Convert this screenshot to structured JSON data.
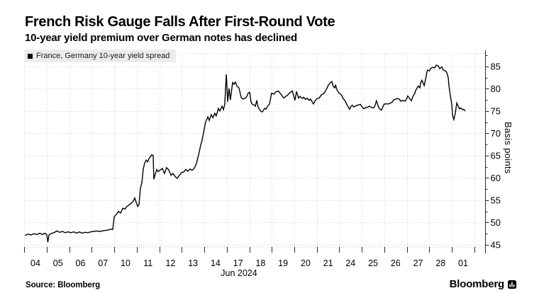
{
  "header": {
    "title": "French Risk Gauge Falls After First-Round Vote",
    "subtitle": "10-year yield premium over German notes has declined"
  },
  "legend": {
    "label": "France, Germany 10-year yield spread",
    "swatch_color": "#000000"
  },
  "footer": {
    "source": "Source: Bloomberg",
    "brand": "Bloomberg"
  },
  "chart_data": {
    "type": "line",
    "series_name": "France, Germany 10-year yield spread",
    "title": "French Risk Gauge Falls After First-Round Vote",
    "subtitle": "10-year yield premium over German notes has declined",
    "ylabel": "Basis points",
    "x_axis_label": "Jun 2024",
    "ylim": [
      44.5,
      88
    ],
    "y_ticks": [
      45,
      50,
      55,
      60,
      65,
      70,
      75,
      80,
      85
    ],
    "y_minor_tick_step": 2.5,
    "x_tick_labels": [
      "04",
      "05",
      "06",
      "07",
      "10",
      "11",
      "12",
      "13",
      "14",
      "17",
      "18",
      "19",
      "20",
      "21",
      "24",
      "25",
      "26",
      "27",
      "28",
      "01"
    ],
    "grid": true,
    "legend_position": "top-left",
    "line_color": "#000000",
    "grid_color": "#d2d2d2",
    "axis_color": "#2b2b2b",
    "points": [
      [
        -0.47,
        47.1
      ],
      [
        -0.32,
        47.4
      ],
      [
        -0.19,
        47.2
      ],
      [
        -0.06,
        47.5
      ],
      [
        0.06,
        47.3
      ],
      [
        0.19,
        47.6
      ],
      [
        0.32,
        47.3
      ],
      [
        0.41,
        47.6
      ],
      [
        0.5,
        47.3
      ],
      [
        0.55,
        45.6
      ],
      [
        0.6,
        47.2
      ],
      [
        0.69,
        47.5
      ],
      [
        0.82,
        47.7
      ],
      [
        0.95,
        48.1
      ],
      [
        1.07,
        47.8
      ],
      [
        1.2,
        48.0
      ],
      [
        1.32,
        47.7
      ],
      [
        1.45,
        47.9
      ],
      [
        1.58,
        47.7
      ],
      [
        1.7,
        47.9
      ],
      [
        1.83,
        47.6
      ],
      [
        1.95,
        47.9
      ],
      [
        2.08,
        47.6
      ],
      [
        2.21,
        47.8
      ],
      [
        2.33,
        47.7
      ],
      [
        2.46,
        47.9
      ],
      [
        2.58,
        48.0
      ],
      [
        2.71,
        48.1
      ],
      [
        2.84,
        48.0
      ],
      [
        2.96,
        48.1
      ],
      [
        3.09,
        48.2
      ],
      [
        3.21,
        48.3
      ],
      [
        3.34,
        48.5
      ],
      [
        3.43,
        48.4
      ],
      [
        3.5,
        51.3
      ],
      [
        3.59,
        51.8
      ],
      [
        3.69,
        52.5
      ],
      [
        3.78,
        52.1
      ],
      [
        3.88,
        53.2
      ],
      [
        3.97,
        53.0
      ],
      [
        4.06,
        53.6
      ],
      [
        4.16,
        53.9
      ],
      [
        4.25,
        54.3
      ],
      [
        4.35,
        54.8
      ],
      [
        4.41,
        55.5
      ],
      [
        4.47,
        54.6
      ],
      [
        4.54,
        53.6
      ],
      [
        4.6,
        54.0
      ],
      [
        4.66,
        57.6
      ],
      [
        4.73,
        59.0
      ],
      [
        4.79,
        62.0
      ],
      [
        4.85,
        63.3
      ],
      [
        4.92,
        64.0
      ],
      [
        4.98,
        63.6
      ],
      [
        5.04,
        64.3
      ],
      [
        5.1,
        64.7
      ],
      [
        5.17,
        65.2
      ],
      [
        5.23,
        65.0
      ],
      [
        5.26,
        59.7
      ],
      [
        5.33,
        61.0
      ],
      [
        5.39,
        61.9
      ],
      [
        5.45,
        61.4
      ],
      [
        5.55,
        61.8
      ],
      [
        5.64,
        62.1
      ],
      [
        5.73,
        61.0
      ],
      [
        5.83,
        62.3
      ],
      [
        5.92,
        61.8
      ],
      [
        6.02,
        60.6
      ],
      [
        6.11,
        61.0
      ],
      [
        6.21,
        60.3
      ],
      [
        6.3,
        59.9
      ],
      [
        6.4,
        60.6
      ],
      [
        6.49,
        61.2
      ],
      [
        6.58,
        61.3
      ],
      [
        6.68,
        61.9
      ],
      [
        6.77,
        61.5
      ],
      [
        6.87,
        62.0
      ],
      [
        6.96,
        61.7
      ],
      [
        7.06,
        62.2
      ],
      [
        7.15,
        63.2
      ],
      [
        7.25,
        65.2
      ],
      [
        7.34,
        67.3
      ],
      [
        7.4,
        68.4
      ],
      [
        7.5,
        71.0
      ],
      [
        7.56,
        72.5
      ],
      [
        7.66,
        73.7
      ],
      [
        7.72,
        72.9
      ],
      [
        7.81,
        74.2
      ],
      [
        7.88,
        73.5
      ],
      [
        7.97,
        74.5
      ],
      [
        8.03,
        73.9
      ],
      [
        8.13,
        75.6
      ],
      [
        8.19,
        75.0
      ],
      [
        8.29,
        76.1
      ],
      [
        8.35,
        75.3
      ],
      [
        8.41,
        76.5
      ],
      [
        8.48,
        83.2
      ],
      [
        8.54,
        77.1
      ],
      [
        8.6,
        80.1
      ],
      [
        8.66,
        77.5
      ],
      [
        8.76,
        81.4
      ],
      [
        8.82,
        81.0
      ],
      [
        8.88,
        81.5
      ],
      [
        8.95,
        80.6
      ],
      [
        9.04,
        80.2
      ],
      [
        9.14,
        78.0
      ],
      [
        9.23,
        77.7
      ],
      [
        9.33,
        77.9
      ],
      [
        9.39,
        78.3
      ],
      [
        9.45,
        79.0
      ],
      [
        9.52,
        79.2
      ],
      [
        9.58,
        77.0
      ],
      [
        9.64,
        76.5
      ],
      [
        9.7,
        76.4
      ],
      [
        9.77,
        76.1
      ],
      [
        9.83,
        77.4
      ],
      [
        9.89,
        75.9
      ],
      [
        9.96,
        75.3
      ],
      [
        10.02,
        74.9
      ],
      [
        10.08,
        74.8
      ],
      [
        10.18,
        75.6
      ],
      [
        10.24,
        75.4
      ],
      [
        10.3,
        76.0
      ],
      [
        10.4,
        76.6
      ],
      [
        10.49,
        79.0
      ],
      [
        10.59,
        78.8
      ],
      [
        10.68,
        79.3
      ],
      [
        10.78,
        79.5
      ],
      [
        10.87,
        79.0
      ],
      [
        10.96,
        78.4
      ],
      [
        11.03,
        77.9
      ],
      [
        11.12,
        78.3
      ],
      [
        11.19,
        78.5
      ],
      [
        11.28,
        79.0
      ],
      [
        11.41,
        79.5
      ],
      [
        11.53,
        77.4
      ],
      [
        11.6,
        79.4
      ],
      [
        11.69,
        77.9
      ],
      [
        11.75,
        78.3
      ],
      [
        11.85,
        77.8
      ],
      [
        11.91,
        78.1
      ],
      [
        12.0,
        77.6
      ],
      [
        12.07,
        77.9
      ],
      [
        12.16,
        77.4
      ],
      [
        12.22,
        77.7
      ],
      [
        12.29,
        77.1
      ],
      [
        12.35,
        76.6
      ],
      [
        12.41,
        77.2
      ],
      [
        12.51,
        77.8
      ],
      [
        12.6,
        77.9
      ],
      [
        12.7,
        78.6
      ],
      [
        12.82,
        79.0
      ],
      [
        12.92,
        79.8
      ],
      [
        13.01,
        80.8
      ],
      [
        13.11,
        81.4
      ],
      [
        13.17,
        81.6
      ],
      [
        13.23,
        80.5
      ],
      [
        13.3,
        80.2
      ],
      [
        13.33,
        80.9
      ],
      [
        13.39,
        79.8
      ],
      [
        13.49,
        79.0
      ],
      [
        13.55,
        78.8
      ],
      [
        13.61,
        78.5
      ],
      [
        13.67,
        77.8
      ],
      [
        13.74,
        77.4
      ],
      [
        13.8,
        76.8
      ],
      [
        13.86,
        76.2
      ],
      [
        13.96,
        75.4
      ],
      [
        14.02,
        76.1
      ],
      [
        14.08,
        76.3
      ],
      [
        14.15,
        75.9
      ],
      [
        14.21,
        76.1
      ],
      [
        14.3,
        76.3
      ],
      [
        14.37,
        76.4
      ],
      [
        14.43,
        76.5
      ],
      [
        14.52,
        75.9
      ],
      [
        14.59,
        75.5
      ],
      [
        14.68,
        75.8
      ],
      [
        14.78,
        75.9
      ],
      [
        14.84,
        76.1
      ],
      [
        14.93,
        75.8
      ],
      [
        15.0,
        75.7
      ],
      [
        15.06,
        75.9
      ],
      [
        15.15,
        77.3
      ],
      [
        15.22,
        76.2
      ],
      [
        15.28,
        75.5
      ],
      [
        15.37,
        75.2
      ],
      [
        15.44,
        76.0
      ],
      [
        15.5,
        76.6
      ],
      [
        15.6,
        76.6
      ],
      [
        15.69,
        76.6
      ],
      [
        15.78,
        76.8
      ],
      [
        15.85,
        77.0
      ],
      [
        15.94,
        77.6
      ],
      [
        16.01,
        77.7
      ],
      [
        16.07,
        77.8
      ],
      [
        16.16,
        77.7
      ],
      [
        16.23,
        77.2
      ],
      [
        16.32,
        77.4
      ],
      [
        16.42,
        77.2
      ],
      [
        16.48,
        77.6
      ],
      [
        16.54,
        78.4
      ],
      [
        16.6,
        78.0
      ],
      [
        16.7,
        77.3
      ],
      [
        16.79,
        78.5
      ],
      [
        16.86,
        79.0
      ],
      [
        16.89,
        79.6
      ],
      [
        16.95,
        80.1
      ],
      [
        17.01,
        80.6
      ],
      [
        17.08,
        80.2
      ],
      [
        17.11,
        81.3
      ],
      [
        17.17,
        81.9
      ],
      [
        17.23,
        81.2
      ],
      [
        17.27,
        80.7
      ],
      [
        17.33,
        82.1
      ],
      [
        17.39,
        83.7
      ],
      [
        17.42,
        84.2
      ],
      [
        17.49,
        84.0
      ],
      [
        17.55,
        84.5
      ],
      [
        17.64,
        84.8
      ],
      [
        17.74,
        84.7
      ],
      [
        17.8,
        85.3
      ],
      [
        17.9,
        85.1
      ],
      [
        17.96,
        84.5
      ],
      [
        18.05,
        84.9
      ],
      [
        18.12,
        84.2
      ],
      [
        18.21,
        84.0
      ],
      [
        18.27,
        83.7
      ],
      [
        18.34,
        82.4
      ],
      [
        18.37,
        80.8
      ],
      [
        18.43,
        78.5
      ],
      [
        18.5,
        76.4
      ],
      [
        18.53,
        74.0
      ],
      [
        18.59,
        73.1
      ],
      [
        18.65,
        74.5
      ],
      [
        18.72,
        76.8
      ],
      [
        18.78,
        76.1
      ],
      [
        18.84,
        75.5
      ],
      [
        18.9,
        75.7
      ],
      [
        18.97,
        75.3
      ],
      [
        19.03,
        75.4
      ],
      [
        19.09,
        75.0
      ]
    ]
  }
}
